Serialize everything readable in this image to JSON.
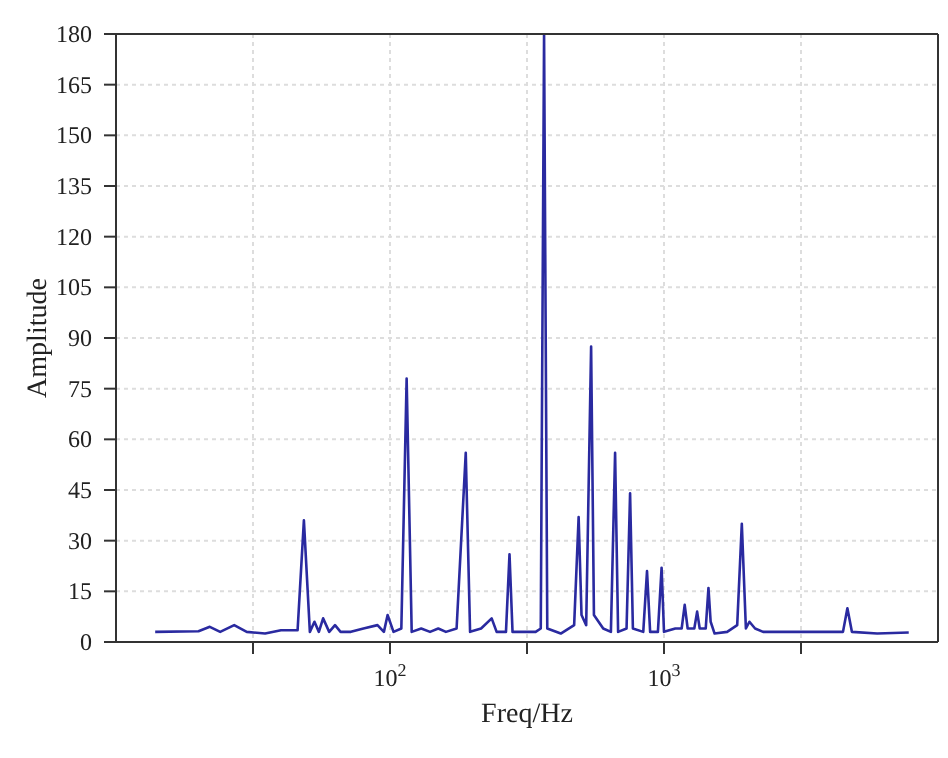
{
  "chart_data": {
    "type": "line",
    "xlabel": "Freq/Hz",
    "ylabel": "Amplitude",
    "log": "x",
    "grid": true,
    "marker": "none",
    "line_style": "solid",
    "xlim": [
      10,
      10000
    ],
    "xticks": [
      {
        "value": 31.62,
        "label": null
      },
      {
        "value": 100,
        "label": "10$^{2}$"
      },
      {
        "value": 316.2,
        "label": null
      },
      {
        "value": 1000,
        "label": "10$^{3}$"
      },
      {
        "value": 3162,
        "label": null
      }
    ],
    "ylim": [
      0,
      180
    ],
    "yticks": [
      0,
      15,
      30,
      45,
      60,
      75,
      90,
      105,
      120,
      135,
      150,
      165,
      180
    ],
    "x": [
      13.9,
      20,
      22,
      24,
      27,
      30,
      35,
      40,
      46,
      48.5,
      51,
      53,
      55,
      57,
      60,
      63,
      66,
      72,
      80,
      90,
      95,
      98,
      103,
      110,
      115,
      120,
      130,
      140,
      150,
      160,
      175,
      189,
      196,
      215,
      235,
      245,
      265,
      273,
      280,
      340,
      355,
      365,
      375,
      420,
      470,
      488,
      500,
      520,
      542,
      555,
      600,
      640,
      663,
      680,
      730,
      752,
      770,
      840,
      867,
      890,
      950,
      980,
      1000,
      1100,
      1160,
      1190,
      1220,
      1290,
      1321,
      1350,
      1420,
      1453,
      1480,
      1530,
      1700,
      1850,
      1923,
      1990,
      2050,
      2150,
      2300,
      3000,
      4500,
      4670,
      4850,
      6000,
      7820
    ],
    "series": [
      {
        "color": "#2a2aa0",
        "values": [
          3,
          3.2,
          4.5,
          3,
          5,
          3,
          2.5,
          3.5,
          3.5,
          36,
          3,
          6,
          3,
          7,
          3,
          5,
          3,
          3,
          4,
          5,
          3,
          8,
          3,
          4,
          78,
          3,
          4,
          3,
          4,
          3,
          4,
          56,
          3,
          4,
          7,
          3,
          3,
          26,
          3,
          3,
          4,
          180,
          4,
          2.5,
          5,
          37,
          8,
          5,
          87.5,
          8,
          4,
          3,
          56,
          3,
          4,
          44,
          4,
          3,
          21,
          3,
          3,
          22,
          3,
          4,
          4,
          11,
          4,
          4,
          9,
          4,
          4,
          16,
          6,
          2.5,
          3,
          5,
          35,
          4,
          6,
          4,
          3,
          3,
          3,
          10,
          3,
          2.5,
          2.8
        ]
      }
    ]
  }
}
